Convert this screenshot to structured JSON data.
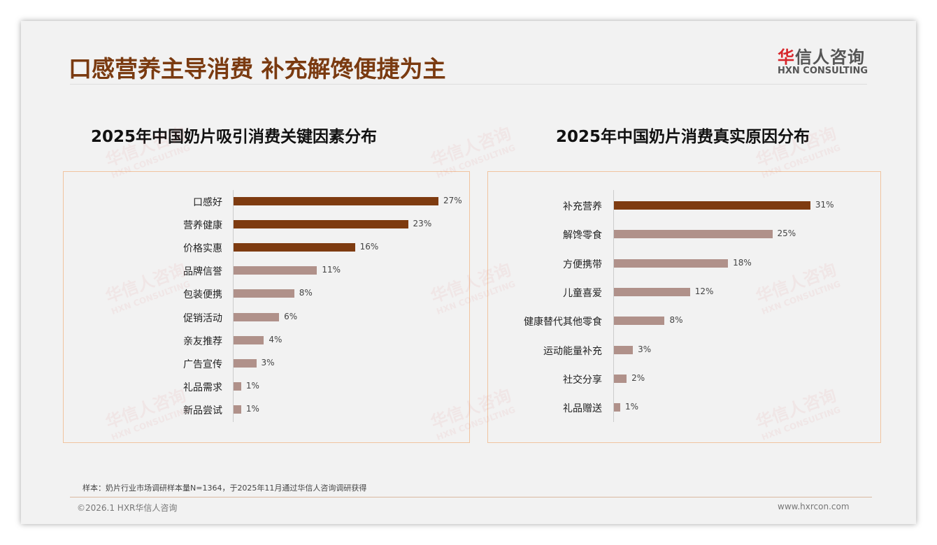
{
  "header": {
    "title": "口感营养主导消费 补充解馋便捷为主",
    "logo_cn_red": "华",
    "logo_cn": "信人咨询",
    "logo_en": "HXN CONSULTING"
  },
  "watermark": {
    "cn": "华信人咨询",
    "en": "HXN CONSULTING"
  },
  "colors": {
    "dark": "#7e3b10",
    "light": "#b0918a"
  },
  "chart_data": [
    {
      "type": "bar",
      "orientation": "horizontal",
      "title": "2025年中国奶片吸引消费关键因素分布",
      "categories": [
        "口感好",
        "营养健康",
        "价格实惠",
        "品牌信誉",
        "包装便携",
        "促销活动",
        "亲友推荐",
        "广告宣传",
        "礼品需求",
        "新品尝试"
      ],
      "values": [
        27,
        23,
        16,
        11,
        8,
        6,
        4,
        3,
        1,
        1
      ],
      "unit": "%",
      "highlight_count": 3
    },
    {
      "type": "bar",
      "orientation": "horizontal",
      "title": "2025年中国奶片消费真实原因分布",
      "categories": [
        "补充营养",
        "解馋零食",
        "方便携带",
        "儿童喜爱",
        "健康替代其他零食",
        "运动能量补充",
        "社交分享",
        "礼品赠送"
      ],
      "values": [
        31,
        25,
        18,
        12,
        8,
        3,
        2,
        1
      ],
      "unit": "%",
      "highlight_count": 1
    }
  ],
  "footer": {
    "note": "样本：奶片行业市场调研样本量N=1364，于2025年11月通过华信人咨询调研获得",
    "copyright": "©2026.1 HXR华信人咨询",
    "url": "www.hxrcon.com"
  }
}
